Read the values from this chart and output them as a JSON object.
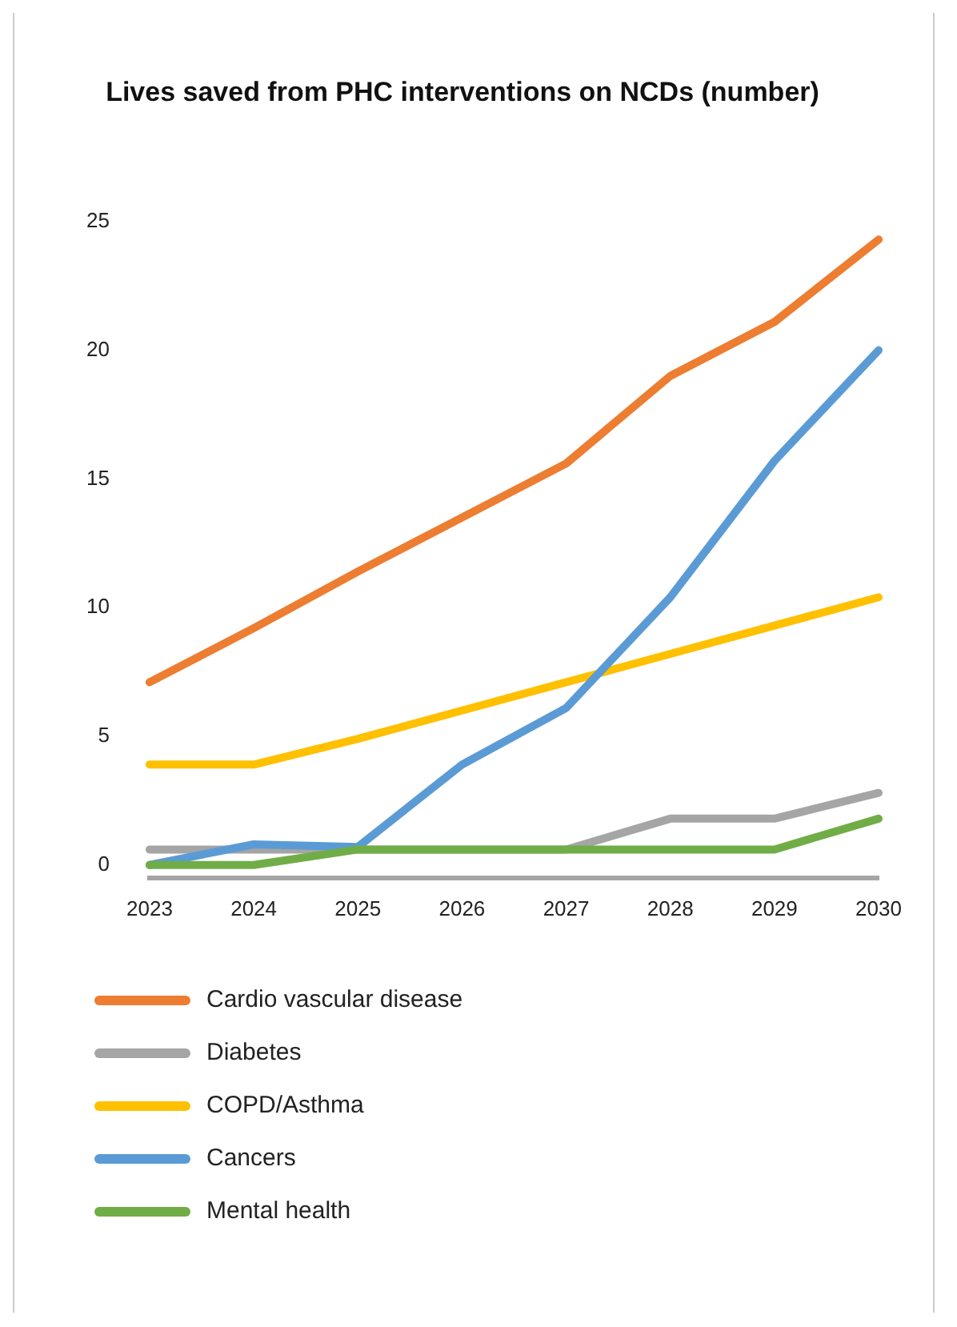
{
  "chart_data": {
    "type": "line",
    "title": "Lives saved from PHC interventions on NCDs (number)",
    "categories": [
      "2023",
      "2024",
      "2025",
      "2026",
      "2027",
      "2028",
      "2029",
      "2030"
    ],
    "series": [
      {
        "name": "Cardio vascular disease",
        "color": "#ed7d31",
        "values": [
          7.1,
          9.2,
          11.4,
          13.5,
          15.6,
          19.0,
          21.1,
          24.3
        ]
      },
      {
        "name": "Diabetes",
        "color": "#a5a5a5",
        "values": [
          0.6,
          0.6,
          0.6,
          0.6,
          0.6,
          1.8,
          1.8,
          2.8
        ]
      },
      {
        "name": "COPD/Asthma",
        "color": "#ffc000",
        "values": [
          3.9,
          3.9,
          4.9,
          6.0,
          7.1,
          8.2,
          9.3,
          10.4
        ]
      },
      {
        "name": "Cancers",
        "color": "#5b9bd5",
        "values": [
          0,
          0.8,
          0.7,
          3.9,
          6.1,
          10.4,
          15.7,
          20.0
        ]
      },
      {
        "name": "Mental health",
        "color": "#70ad47",
        "values": [
          0,
          0,
          0.6,
          0.6,
          0.6,
          0.6,
          0.6,
          1.8
        ]
      }
    ],
    "ylim": [
      -0.5,
      25
    ],
    "yticks": [
      0,
      5,
      10,
      15,
      20,
      25
    ],
    "grid": false,
    "legend": "bottom",
    "marker": "none",
    "line_style": "solid"
  }
}
